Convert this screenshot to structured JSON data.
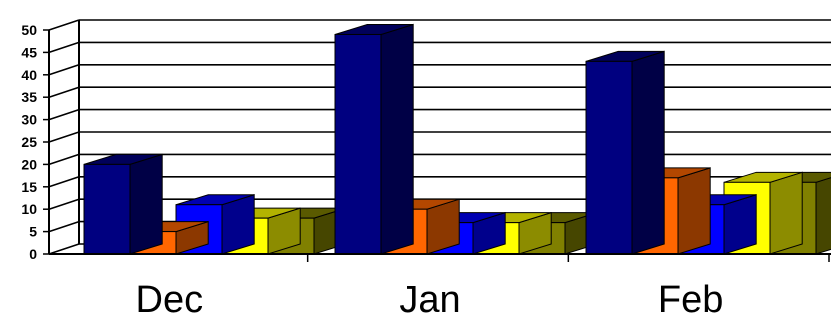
{
  "chart_data": {
    "type": "bar",
    "title": "",
    "xlabel": "",
    "ylabel": "",
    "ylim": [
      0,
      50
    ],
    "yticks": [
      "0",
      "5",
      "10",
      "15",
      "20",
      "25",
      "30",
      "35",
      "40",
      "45",
      "50"
    ],
    "categories": [
      "Dec",
      "Jan",
      "Feb"
    ],
    "grid": true,
    "legend": "none",
    "style": "3d-bar",
    "series": [
      {
        "values": [
          20,
          49,
          43
        ],
        "color": "#000080"
      },
      {
        "values": [
          5,
          10,
          17
        ],
        "color": "#ff6600"
      },
      {
        "values": [
          11,
          7,
          11
        ],
        "color": "#0000ff"
      },
      {
        "values": [
          8,
          7,
          16
        ],
        "color": "#ffff00"
      },
      {
        "values": [
          8,
          7,
          16
        ],
        "color": "#808000"
      }
    ]
  }
}
